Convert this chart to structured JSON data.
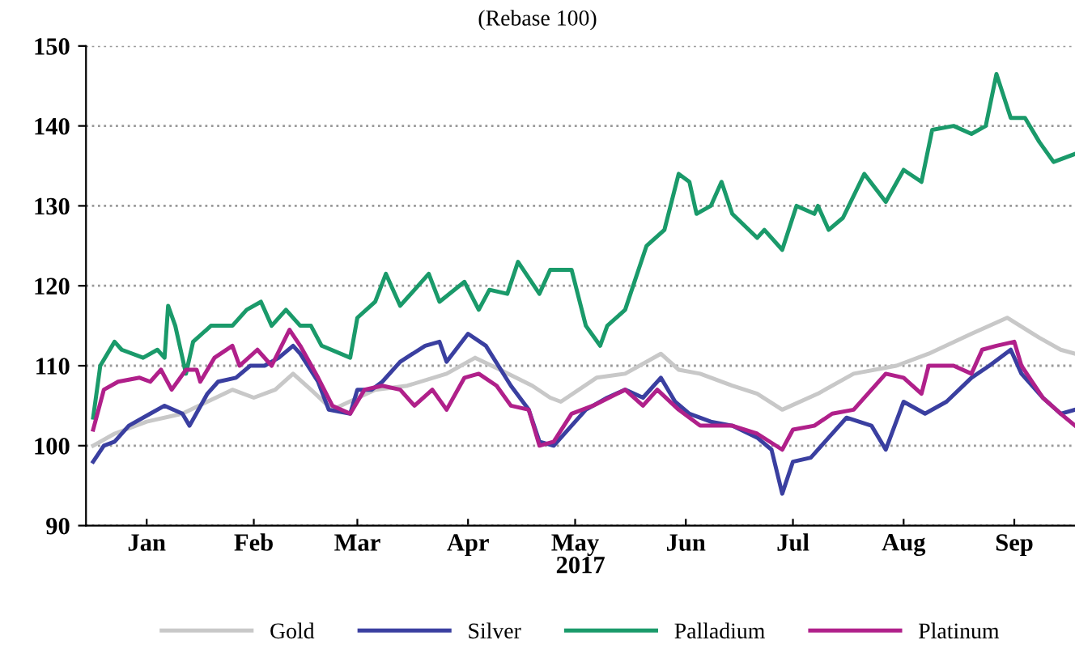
{
  "chart_data": {
    "type": "line",
    "subtitle": "(Rebase 100)",
    "xlabel": "2017",
    "xlim": [
      "2016-12-30",
      "2017-10-03"
    ],
    "xticks": [
      {
        "value": "2017-01-16",
        "label": "Jan"
      },
      {
        "value": "2017-02-15",
        "label": "Feb"
      },
      {
        "value": "2017-03-16",
        "label": "Mar"
      },
      {
        "value": "2017-04-16",
        "label": "Apr"
      },
      {
        "value": "2017-05-16",
        "label": "May"
      },
      {
        "value": "2017-06-16",
        "label": "Jun"
      },
      {
        "value": "2017-07-16",
        "label": "Jul"
      },
      {
        "value": "2017-08-16",
        "label": "Aug"
      },
      {
        "value": "2017-09-16",
        "label": "Sep"
      }
    ],
    "ylim": [
      90,
      150
    ],
    "yticks": [
      90,
      100,
      110,
      120,
      130,
      140,
      150
    ],
    "grid": "y",
    "legend": "bottom",
    "line_style": "solid",
    "series": [
      {
        "name": "Gold",
        "color": "#c8c8c8",
        "x": [
          "2017-01-01",
          "2017-01-07",
          "2017-01-16",
          "2017-01-26",
          "2017-02-09",
          "2017-02-15",
          "2017-02-21",
          "2017-02-26",
          "2017-03-03",
          "2017-03-09",
          "2017-03-21",
          "2017-03-30",
          "2017-04-10",
          "2017-04-18",
          "2017-04-25",
          "2017-05-04",
          "2017-05-09",
          "2017-05-12",
          "2017-05-22",
          "2017-05-30",
          "2017-06-09",
          "2017-06-14",
          "2017-06-20",
          "2017-06-29",
          "2017-07-06",
          "2017-07-13",
          "2017-07-23",
          "2017-08-02",
          "2017-08-14",
          "2017-08-23",
          "2017-09-04",
          "2017-09-14",
          "2017-09-23",
          "2017-09-29",
          "2017-10-03"
        ],
        "values": [
          100,
          101.5,
          103,
          104,
          107,
          106,
          107,
          109,
          107,
          104.5,
          107,
          107.5,
          109,
          111,
          109.5,
          107.5,
          106,
          105.5,
          108.5,
          109,
          111.5,
          109.5,
          109,
          107.5,
          106.5,
          104.5,
          106.5,
          109,
          110,
          111.5,
          114,
          116,
          113.5,
          112,
          111.5
        ]
      },
      {
        "name": "Silver",
        "color": "#3a3fa0",
        "x": [
          "2017-01-01",
          "2017-01-04",
          "2017-01-07",
          "2017-01-11",
          "2017-01-17",
          "2017-01-21",
          "2017-01-26",
          "2017-01-28",
          "2017-02-02",
          "2017-02-05",
          "2017-02-10",
          "2017-02-14",
          "2017-02-18",
          "2017-02-22",
          "2017-02-26",
          "2017-02-28",
          "2017-03-05",
          "2017-03-08",
          "2017-03-14",
          "2017-03-16",
          "2017-03-20",
          "2017-03-23",
          "2017-03-28",
          "2017-04-04",
          "2017-04-08",
          "2017-04-10",
          "2017-04-16",
          "2017-04-21",
          "2017-04-28",
          "2017-05-03",
          "2017-05-06",
          "2017-05-10",
          "2017-05-15",
          "2017-05-19",
          "2017-05-25",
          "2017-05-30",
          "2017-06-04",
          "2017-06-09",
          "2017-06-13",
          "2017-06-17",
          "2017-06-23",
          "2017-06-29",
          "2017-07-06",
          "2017-07-10",
          "2017-07-13",
          "2017-07-16",
          "2017-07-21",
          "2017-07-26",
          "2017-07-31",
          "2017-08-07",
          "2017-08-11",
          "2017-08-16",
          "2017-08-22",
          "2017-08-28",
          "2017-09-04",
          "2017-09-09",
          "2017-09-15",
          "2017-09-18",
          "2017-09-24",
          "2017-09-29",
          "2017-10-03"
        ],
        "values": [
          98,
          100,
          100.5,
          102.5,
          104,
          105,
          104,
          102.5,
          106.5,
          108,
          108.5,
          110,
          110,
          111,
          112.5,
          111.5,
          108,
          104.5,
          104,
          107,
          107,
          108,
          110.5,
          112.5,
          113,
          110.5,
          114,
          112.5,
          107.5,
          104.5,
          100.5,
          100,
          102.5,
          104.5,
          106,
          107,
          106,
          108.5,
          105.5,
          104,
          103,
          102.5,
          101,
          99.5,
          94,
          98,
          98.5,
          101,
          103.5,
          102.5,
          99.5,
          105.5,
          104,
          105.5,
          108.5,
          110,
          112,
          109,
          106,
          104,
          104.5
        ]
      },
      {
        "name": "Palladium",
        "color": "#1a9a6a",
        "x": [
          "2017-01-01",
          "2017-01-03",
          "2017-01-07",
          "2017-01-09",
          "2017-01-15",
          "2017-01-19",
          "2017-01-21",
          "2017-01-22",
          "2017-01-24",
          "2017-01-27",
          "2017-01-29",
          "2017-02-03",
          "2017-02-09",
          "2017-02-13",
          "2017-02-17",
          "2017-02-20",
          "2017-02-24",
          "2017-02-28",
          "2017-03-03",
          "2017-03-06",
          "2017-03-14",
          "2017-03-16",
          "2017-03-21",
          "2017-03-24",
          "2017-03-28",
          "2017-03-30",
          "2017-04-05",
          "2017-04-08",
          "2017-04-15",
          "2017-04-19",
          "2017-04-22",
          "2017-04-27",
          "2017-04-30",
          "2017-05-06",
          "2017-05-09",
          "2017-05-15",
          "2017-05-19",
          "2017-05-23",
          "2017-05-25",
          "2017-05-30",
          "2017-06-05",
          "2017-06-10",
          "2017-06-14",
          "2017-06-17",
          "2017-06-19",
          "2017-06-23",
          "2017-06-26",
          "2017-06-29",
          "2017-07-06",
          "2017-07-08",
          "2017-07-13",
          "2017-07-17",
          "2017-07-22",
          "2017-07-23",
          "2017-07-26",
          "2017-07-30",
          "2017-08-05",
          "2017-08-11",
          "2017-08-16",
          "2017-08-21",
          "2017-08-24",
          "2017-08-30",
          "2017-09-04",
          "2017-09-08",
          "2017-09-11",
          "2017-09-15",
          "2017-09-19",
          "2017-09-23",
          "2017-09-27",
          "2017-10-03"
        ],
        "values": [
          103.5,
          110,
          113,
          112,
          111,
          112,
          111,
          117.5,
          115,
          109,
          113,
          115,
          115,
          117,
          118,
          115,
          117,
          115,
          115,
          112.5,
          111,
          116,
          118,
          121.5,
          117.5,
          118.5,
          121.5,
          118,
          120.5,
          117,
          119.5,
          119,
          123,
          119,
          122,
          122,
          115,
          112.5,
          115,
          117,
          125,
          127,
          134,
          133,
          129,
          130,
          133,
          129,
          126,
          127,
          124.5,
          130,
          129,
          130,
          127,
          128.5,
          134,
          130.5,
          134.5,
          133,
          139.5,
          140,
          139,
          140,
          146.5,
          141,
          141,
          138,
          135.5,
          136.5
        ]
      },
      {
        "name": "Platinum",
        "color": "#b0208a",
        "x": [
          "2017-01-01",
          "2017-01-04",
          "2017-01-08",
          "2017-01-14",
          "2017-01-17",
          "2017-01-20",
          "2017-01-23",
          "2017-01-27",
          "2017-01-30",
          "2017-01-31",
          "2017-02-04",
          "2017-02-09",
          "2017-02-11",
          "2017-02-16",
          "2017-02-20",
          "2017-02-25",
          "2017-02-28",
          "2017-03-05",
          "2017-03-09",
          "2017-03-14",
          "2017-03-18",
          "2017-03-23",
          "2017-03-28",
          "2017-04-01",
          "2017-04-06",
          "2017-04-10",
          "2017-04-15",
          "2017-04-19",
          "2017-04-24",
          "2017-04-28",
          "2017-05-03",
          "2017-05-06",
          "2017-05-10",
          "2017-05-15",
          "2017-05-21",
          "2017-05-30",
          "2017-06-04",
          "2017-06-08",
          "2017-06-14",
          "2017-06-20",
          "2017-06-29",
          "2017-07-06",
          "2017-07-13",
          "2017-07-16",
          "2017-07-22",
          "2017-07-27",
          "2017-08-02",
          "2017-08-11",
          "2017-08-16",
          "2017-08-21",
          "2017-08-23",
          "2017-08-30",
          "2017-09-04",
          "2017-09-07",
          "2017-09-11",
          "2017-09-16",
          "2017-09-18",
          "2017-09-24",
          "2017-09-29",
          "2017-10-03"
        ],
        "values": [
          102,
          107,
          108,
          108.5,
          108,
          109.5,
          107,
          109.5,
          109.5,
          108,
          111,
          112.5,
          110,
          112,
          110,
          114.5,
          112.5,
          108.5,
          105,
          104,
          107,
          107.5,
          107,
          105,
          107,
          104.5,
          108.5,
          109,
          107.5,
          105,
          104.5,
          100,
          100.5,
          104,
          105,
          107,
          105,
          107,
          104.5,
          102.5,
          102.5,
          101.5,
          99.5,
          102,
          102.5,
          104,
          104.5,
          109,
          108.5,
          106.5,
          110,
          110,
          109,
          112,
          112.5,
          113,
          110,
          106,
          104,
          102.5
        ]
      }
    ]
  }
}
